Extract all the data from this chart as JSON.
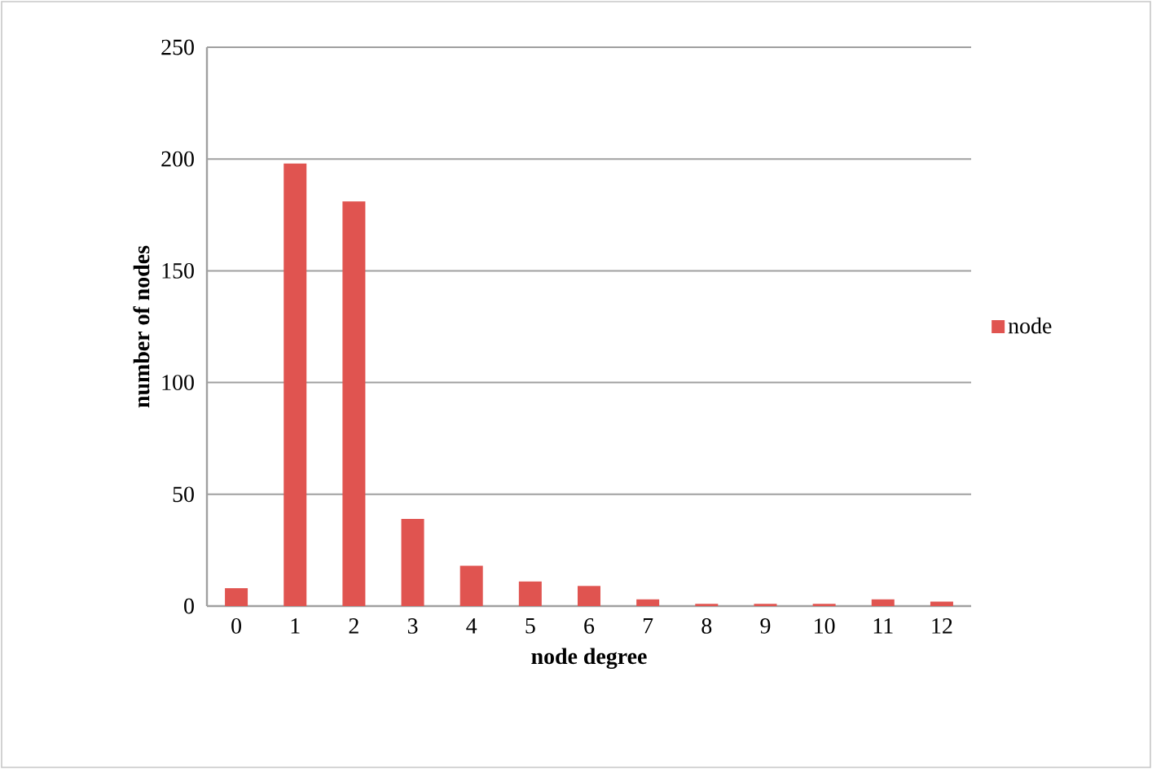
{
  "chart_data": {
    "type": "bar",
    "xlabel": "node degree",
    "ylabel": "number of nodes",
    "categories": [
      "0",
      "1",
      "2",
      "3",
      "4",
      "5",
      "6",
      "7",
      "8",
      "9",
      "10",
      "11",
      "12"
    ],
    "series": [
      {
        "name": "node",
        "color": "#e05450",
        "values": [
          8,
          198,
          181,
          39,
          18,
          11,
          9,
          3,
          1,
          1,
          1,
          3,
          2
        ]
      }
    ],
    "ylim": [
      0,
      250
    ],
    "yticks": [
      0,
      50,
      100,
      150,
      200,
      250
    ],
    "grid": "y",
    "legend": "right"
  }
}
